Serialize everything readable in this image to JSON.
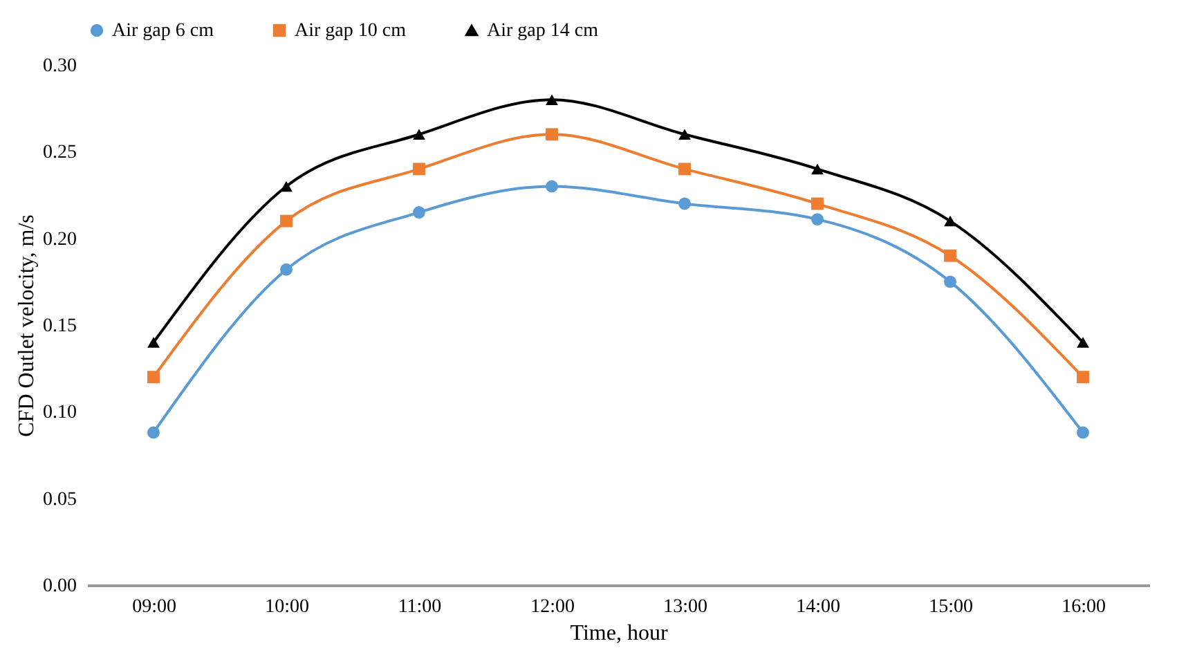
{
  "chart_data": {
    "type": "line",
    "xlabel": "Time, hour",
    "ylabel": "CFD Outlet velocity, m/s",
    "categories": [
      "09:00",
      "10:00",
      "11:00",
      "12:00",
      "13:00",
      "14:00",
      "15:00",
      "16:00"
    ],
    "series": [
      {
        "name": "Air gap 6 cm",
        "color": "#5b9bd5",
        "marker": "circle",
        "values": [
          0.088,
          0.182,
          0.215,
          0.23,
          0.22,
          0.211,
          0.175,
          0.088
        ]
      },
      {
        "name": "Air gap 10 cm",
        "color": "#ed7d31",
        "marker": "square",
        "values": [
          0.12,
          0.21,
          0.24,
          0.26,
          0.24,
          0.22,
          0.19,
          0.12
        ]
      },
      {
        "name": "Air gap 14 cm",
        "color": "#000000",
        "marker": "triangle",
        "values": [
          0.14,
          0.23,
          0.26,
          0.28,
          0.26,
          0.24,
          0.21,
          0.14
        ]
      }
    ],
    "ylim": [
      0,
      0.3
    ],
    "yticks": [
      {
        "value": 0,
        "label": "0.00"
      },
      {
        "value": 0.05,
        "label": "0.05"
      },
      {
        "value": 0.1,
        "label": "0.10"
      },
      {
        "value": 0.15,
        "label": "0.15"
      },
      {
        "value": 0.2,
        "label": "0.20"
      },
      {
        "value": 0.25,
        "label": "0.25"
      },
      {
        "value": 0.3,
        "label": "0.30"
      }
    ],
    "grid": false,
    "legend": "top",
    "line_style": "solid"
  }
}
